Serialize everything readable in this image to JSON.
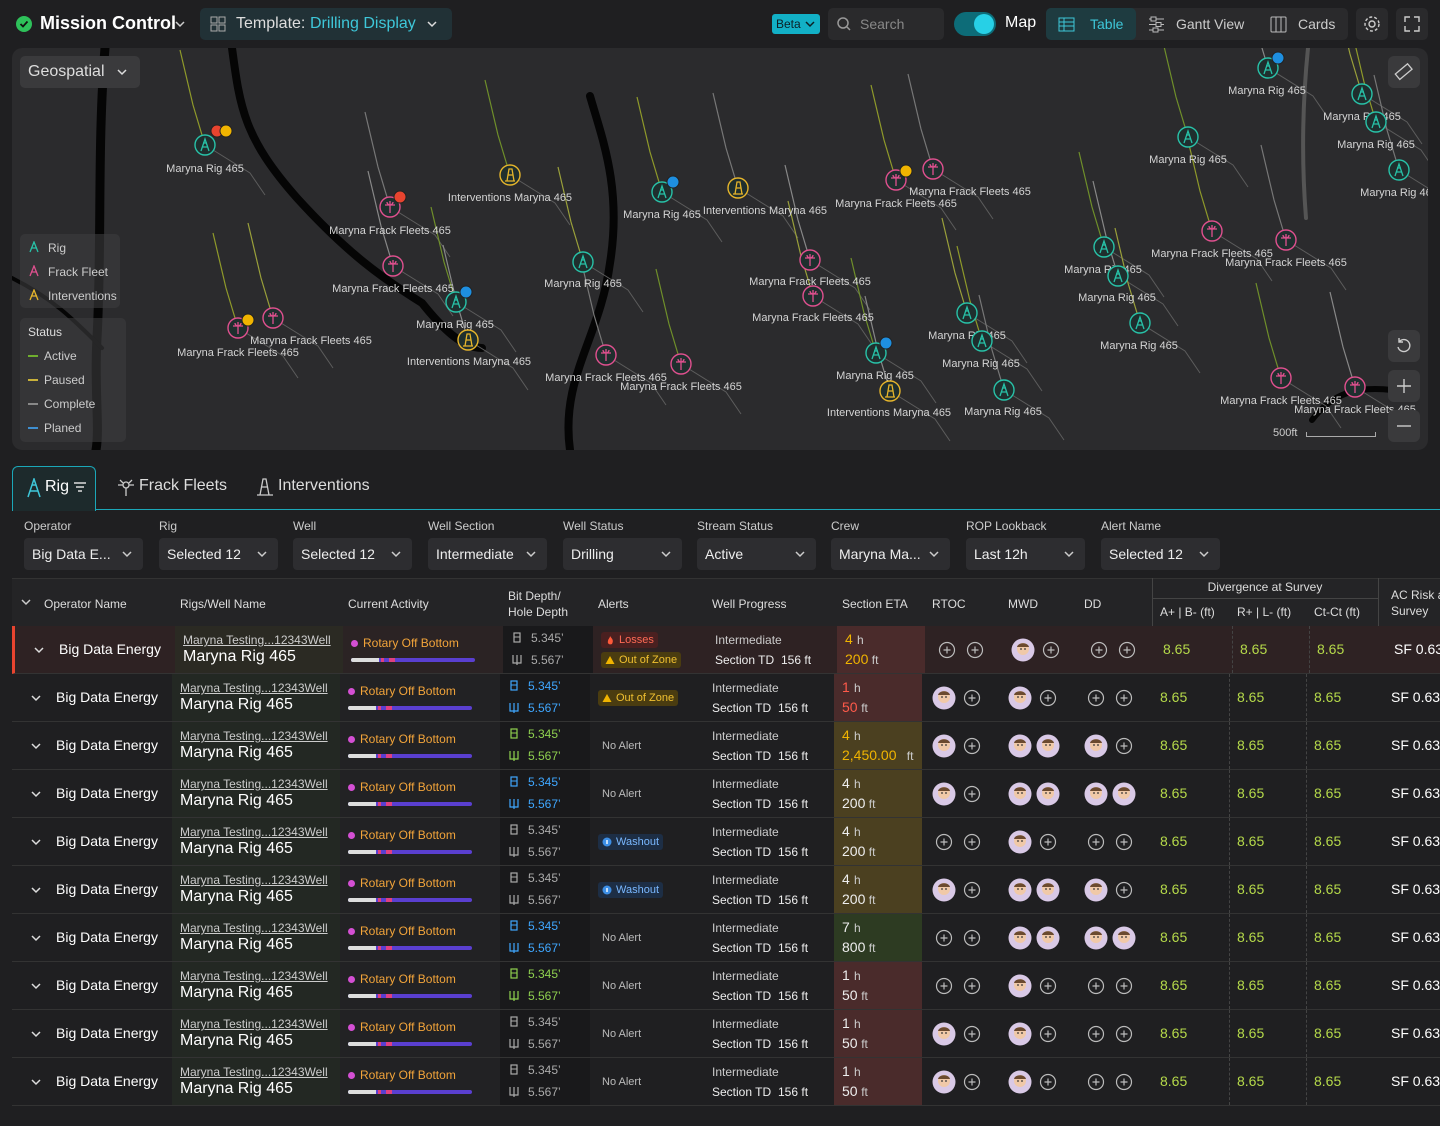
{
  "header": {
    "app_title": "Mission Control",
    "template_label": "Template:",
    "template_name": "Drilling Display",
    "beta": "Beta",
    "search_placeholder": "Search",
    "map_toggle": "Map",
    "views": [
      "Table",
      "Gantt View",
      "Cards"
    ]
  },
  "map": {
    "layer_selector": "Geospatial",
    "legend": [
      "Rig",
      "Frack Fleet",
      "Interventions"
    ],
    "status_title": "Status",
    "statuses": [
      "Active",
      "Paused",
      "Complete",
      "Planed"
    ],
    "scale": "500ft",
    "markers": [
      {
        "label": "Maryna Rig 465"
      },
      {
        "label": "Maryna Frack Fleets 465"
      },
      {
        "label": "Interventions Maryna 465"
      },
      {
        "label": "Maryna Frack Fleets 465"
      },
      {
        "label": "Maryna Rig 465"
      },
      {
        "label": "Maryna Rig 465"
      },
      {
        "label": "Interventions Maryna 465"
      },
      {
        "label": "Maryna Rig 465"
      },
      {
        "label": "Interventions Maryna 465"
      },
      {
        "label": "Maryna Frack Fleets 465"
      },
      {
        "label": "Maryna Frack Fleets 465"
      },
      {
        "label": "Maryna Frack Fleets 465"
      },
      {
        "label": "Maryna Frack Fleets 465"
      },
      {
        "label": "Maryna Frack Fleets 465"
      },
      {
        "label": "Maryna Frack Fleets 465"
      },
      {
        "label": "Maryna Frack Fleets 465"
      },
      {
        "label": "Maryna Frack Fleets 465"
      },
      {
        "label": "Maryna Rig 465"
      },
      {
        "label": "Interventions Maryna 465"
      },
      {
        "label": "Maryna Rig 465"
      },
      {
        "label": "Maryna Rig 465"
      },
      {
        "label": "Maryna Rig 465"
      },
      {
        "label": "Maryna Rig 465"
      },
      {
        "label": "Maryna Rig 465"
      },
      {
        "label": "Maryna Rig 465"
      },
      {
        "label": "Maryna Frack Fleets 465"
      },
      {
        "label": "Maryna Frack Fleets 465"
      },
      {
        "label": "Maryna Rig 465"
      },
      {
        "label": "Maryna Rig 465"
      },
      {
        "label": "Maryna Rig 465"
      },
      {
        "label": "Maryna Rig 465"
      },
      {
        "label": "Maryna Rig 465"
      },
      {
        "label": "Maryna Frack Fleets 465"
      },
      {
        "label": "Maryna Frack Fleets 465"
      }
    ]
  },
  "tabs": [
    "Rig",
    "Frack Fleets",
    "Interventions"
  ],
  "filters": [
    {
      "label": "Operator",
      "value": "Big Data E..."
    },
    {
      "label": "Rig",
      "value": "Selected 12"
    },
    {
      "label": "Well",
      "value": "Selected 12"
    },
    {
      "label": "Well Section",
      "value": "Intermediate"
    },
    {
      "label": "Well Status",
      "value": "Drilling"
    },
    {
      "label": "Stream Status",
      "value": "Active"
    },
    {
      "label": "Crew",
      "value": "Maryna Ma..."
    },
    {
      "label": "ROP Lookback",
      "value": "Last 12h"
    },
    {
      "label": "Alert Name",
      "value": "Selected 12"
    }
  ],
  "table": {
    "columns": [
      "Operator Name",
      "Rigs/Well Name",
      "Current Activity",
      "Bit Depth/ Hole Depth",
      "Alerts",
      "Well Progress",
      "Section ETA",
      "RTOC",
      "MWD",
      "DD"
    ],
    "group_header": "Divergence at Survey",
    "group_columns": [
      "A+ | B- (ft)",
      "R+ | L- (ft)",
      "Ct-Ct (ft)"
    ],
    "risk_column": "AC Risk at Survey",
    "rows": [
      {
        "operator": "Big Data Energy",
        "well": "Maryna Testing...12343Well",
        "rig": "Maryna Rig 465",
        "activity": "Rotary Off Bottom",
        "bit_depth": "5.345’",
        "hole_depth": "5.567’",
        "alerts": [
          "Losses",
          "Out of Zone"
        ],
        "section": "Intermediate",
        "section_td_label": "Section TD",
        "section_td": "156 ft",
        "eta_hours": "4",
        "eta_hours_unit": "h",
        "eta_distance": "200",
        "eta_distance_unit": "ft",
        "divergence": [
          "8.65",
          "8.65",
          "8.65"
        ],
        "ac_risk": "SF 0.63"
      },
      {
        "operator": "Big Data Energy",
        "well": "Maryna Testing...12343Well",
        "rig": "Maryna Rig 465",
        "activity": "Rotary Off Bottom",
        "bit_depth": "5.345’",
        "hole_depth": "5.567’",
        "alerts": [
          "Out of Zone"
        ],
        "section": "Intermediate",
        "section_td_label": "Section TD",
        "section_td": "156 ft",
        "eta_hours": "1",
        "eta_hours_unit": "h",
        "eta_distance": "50",
        "eta_distance_unit": "ft",
        "divergence": [
          "8.65",
          "8.65",
          "8.65"
        ],
        "ac_risk": "SF 0.63"
      },
      {
        "operator": "Big Data Energy",
        "well": "Maryna Testing...12343Well",
        "rig": "Maryna Rig 465",
        "activity": "Rotary Off Bottom",
        "bit_depth": "5.345’",
        "hole_depth": "5.567’",
        "alerts": [
          "No Alert"
        ],
        "section": "Intermediate",
        "section_td_label": "Section TD",
        "section_td": "156 ft",
        "eta_hours": "4",
        "eta_hours_unit": "h",
        "eta_distance": "2,450.00",
        "eta_distance_unit": "ft",
        "divergence": [
          "8.65",
          "8.65",
          "8.65"
        ],
        "ac_risk": "SF 0.63"
      },
      {
        "operator": "Big Data Energy",
        "well": "Maryna Testing...12343Well",
        "rig": "Maryna Rig 465",
        "activity": "Rotary Off Bottom",
        "bit_depth": "5.345’",
        "hole_depth": "5.567’",
        "alerts": [
          "No Alert"
        ],
        "section": "Intermediate",
        "section_td_label": "Section TD",
        "section_td": "156 ft",
        "eta_hours": "4",
        "eta_hours_unit": "h",
        "eta_distance": "200",
        "eta_distance_unit": "ft",
        "divergence": [
          "8.65",
          "8.65",
          "8.65"
        ],
        "ac_risk": "SF 0.63"
      },
      {
        "operator": "Big Data Energy",
        "well": "Maryna Testing...12343Well",
        "rig": "Maryna Rig 465",
        "activity": "Rotary Off Bottom",
        "bit_depth": "5.345’",
        "hole_depth": "5.567’",
        "alerts": [
          "Washout"
        ],
        "section": "Intermediate",
        "section_td_label": "Section TD",
        "section_td": "156 ft",
        "eta_hours": "4",
        "eta_hours_unit": "h",
        "eta_distance": "200",
        "eta_distance_unit": "ft",
        "divergence": [
          "8.65",
          "8.65",
          "8.65"
        ],
        "ac_risk": "SF 0.63"
      },
      {
        "operator": "Big Data Energy",
        "well": "Maryna Testing...12343Well",
        "rig": "Maryna Rig 465",
        "activity": "Rotary Off Bottom",
        "bit_depth": "5.345’",
        "hole_depth": "5.567’",
        "alerts": [
          "Washout"
        ],
        "section": "Intermediate",
        "section_td_label": "Section TD",
        "section_td": "156 ft",
        "eta_hours": "4",
        "eta_hours_unit": "h",
        "eta_distance": "200",
        "eta_distance_unit": "ft",
        "divergence": [
          "8.65",
          "8.65",
          "8.65"
        ],
        "ac_risk": "SF 0.63"
      },
      {
        "operator": "Big Data Energy",
        "well": "Maryna Testing...12343Well",
        "rig": "Maryna Rig 465",
        "activity": "Rotary Off Bottom",
        "bit_depth": "5.345’",
        "hole_depth": "5.567’",
        "alerts": [
          "No Alert"
        ],
        "section": "Intermediate",
        "section_td_label": "Section TD",
        "section_td": "156 ft",
        "eta_hours": "7",
        "eta_hours_unit": "h",
        "eta_distance": "800",
        "eta_distance_unit": "ft",
        "divergence": [
          "8.65",
          "8.65",
          "8.65"
        ],
        "ac_risk": "SF 0.63"
      },
      {
        "operator": "Big Data Energy",
        "well": "Maryna Testing...12343Well",
        "rig": "Maryna Rig 465",
        "activity": "Rotary Off Bottom",
        "bit_depth": "5.345’",
        "hole_depth": "5.567’",
        "alerts": [
          "No Alert"
        ],
        "section": "Intermediate",
        "section_td_label": "Section TD",
        "section_td": "156 ft",
        "eta_hours": "1",
        "eta_hours_unit": "h",
        "eta_distance": "50",
        "eta_distance_unit": "ft",
        "divergence": [
          "8.65",
          "8.65",
          "8.65"
        ],
        "ac_risk": "SF 0.63"
      },
      {
        "operator": "Big Data Energy",
        "well": "Maryna Testing...12343Well",
        "rig": "Maryna Rig 465",
        "activity": "Rotary Off Bottom",
        "bit_depth": "5.345’",
        "hole_depth": "5.567’",
        "alerts": [
          "No Alert"
        ],
        "section": "Intermediate",
        "section_td_label": "Section TD",
        "section_td": "156 ft",
        "eta_hours": "1",
        "eta_hours_unit": "h",
        "eta_distance": "50",
        "eta_distance_unit": "ft",
        "divergence": [
          "8.65",
          "8.65",
          "8.65"
        ],
        "ac_risk": "SF 0.63"
      },
      {
        "operator": "Big Data Energy",
        "well": "Maryna Testing...12343Well",
        "rig": "Maryna Rig 465",
        "activity": "Rotary Off Bottom",
        "bit_depth": "5.345’",
        "hole_depth": "5.567’",
        "alerts": [
          "No Alert"
        ],
        "section": "Intermediate",
        "section_td_label": "Section TD",
        "section_td": "156 ft",
        "eta_hours": "1",
        "eta_hours_unit": "h",
        "eta_distance": "50",
        "eta_distance_unit": "ft",
        "divergence": [
          "8.65",
          "8.65",
          "8.65"
        ],
        "ac_risk": "SF 0.63"
      }
    ]
  }
}
